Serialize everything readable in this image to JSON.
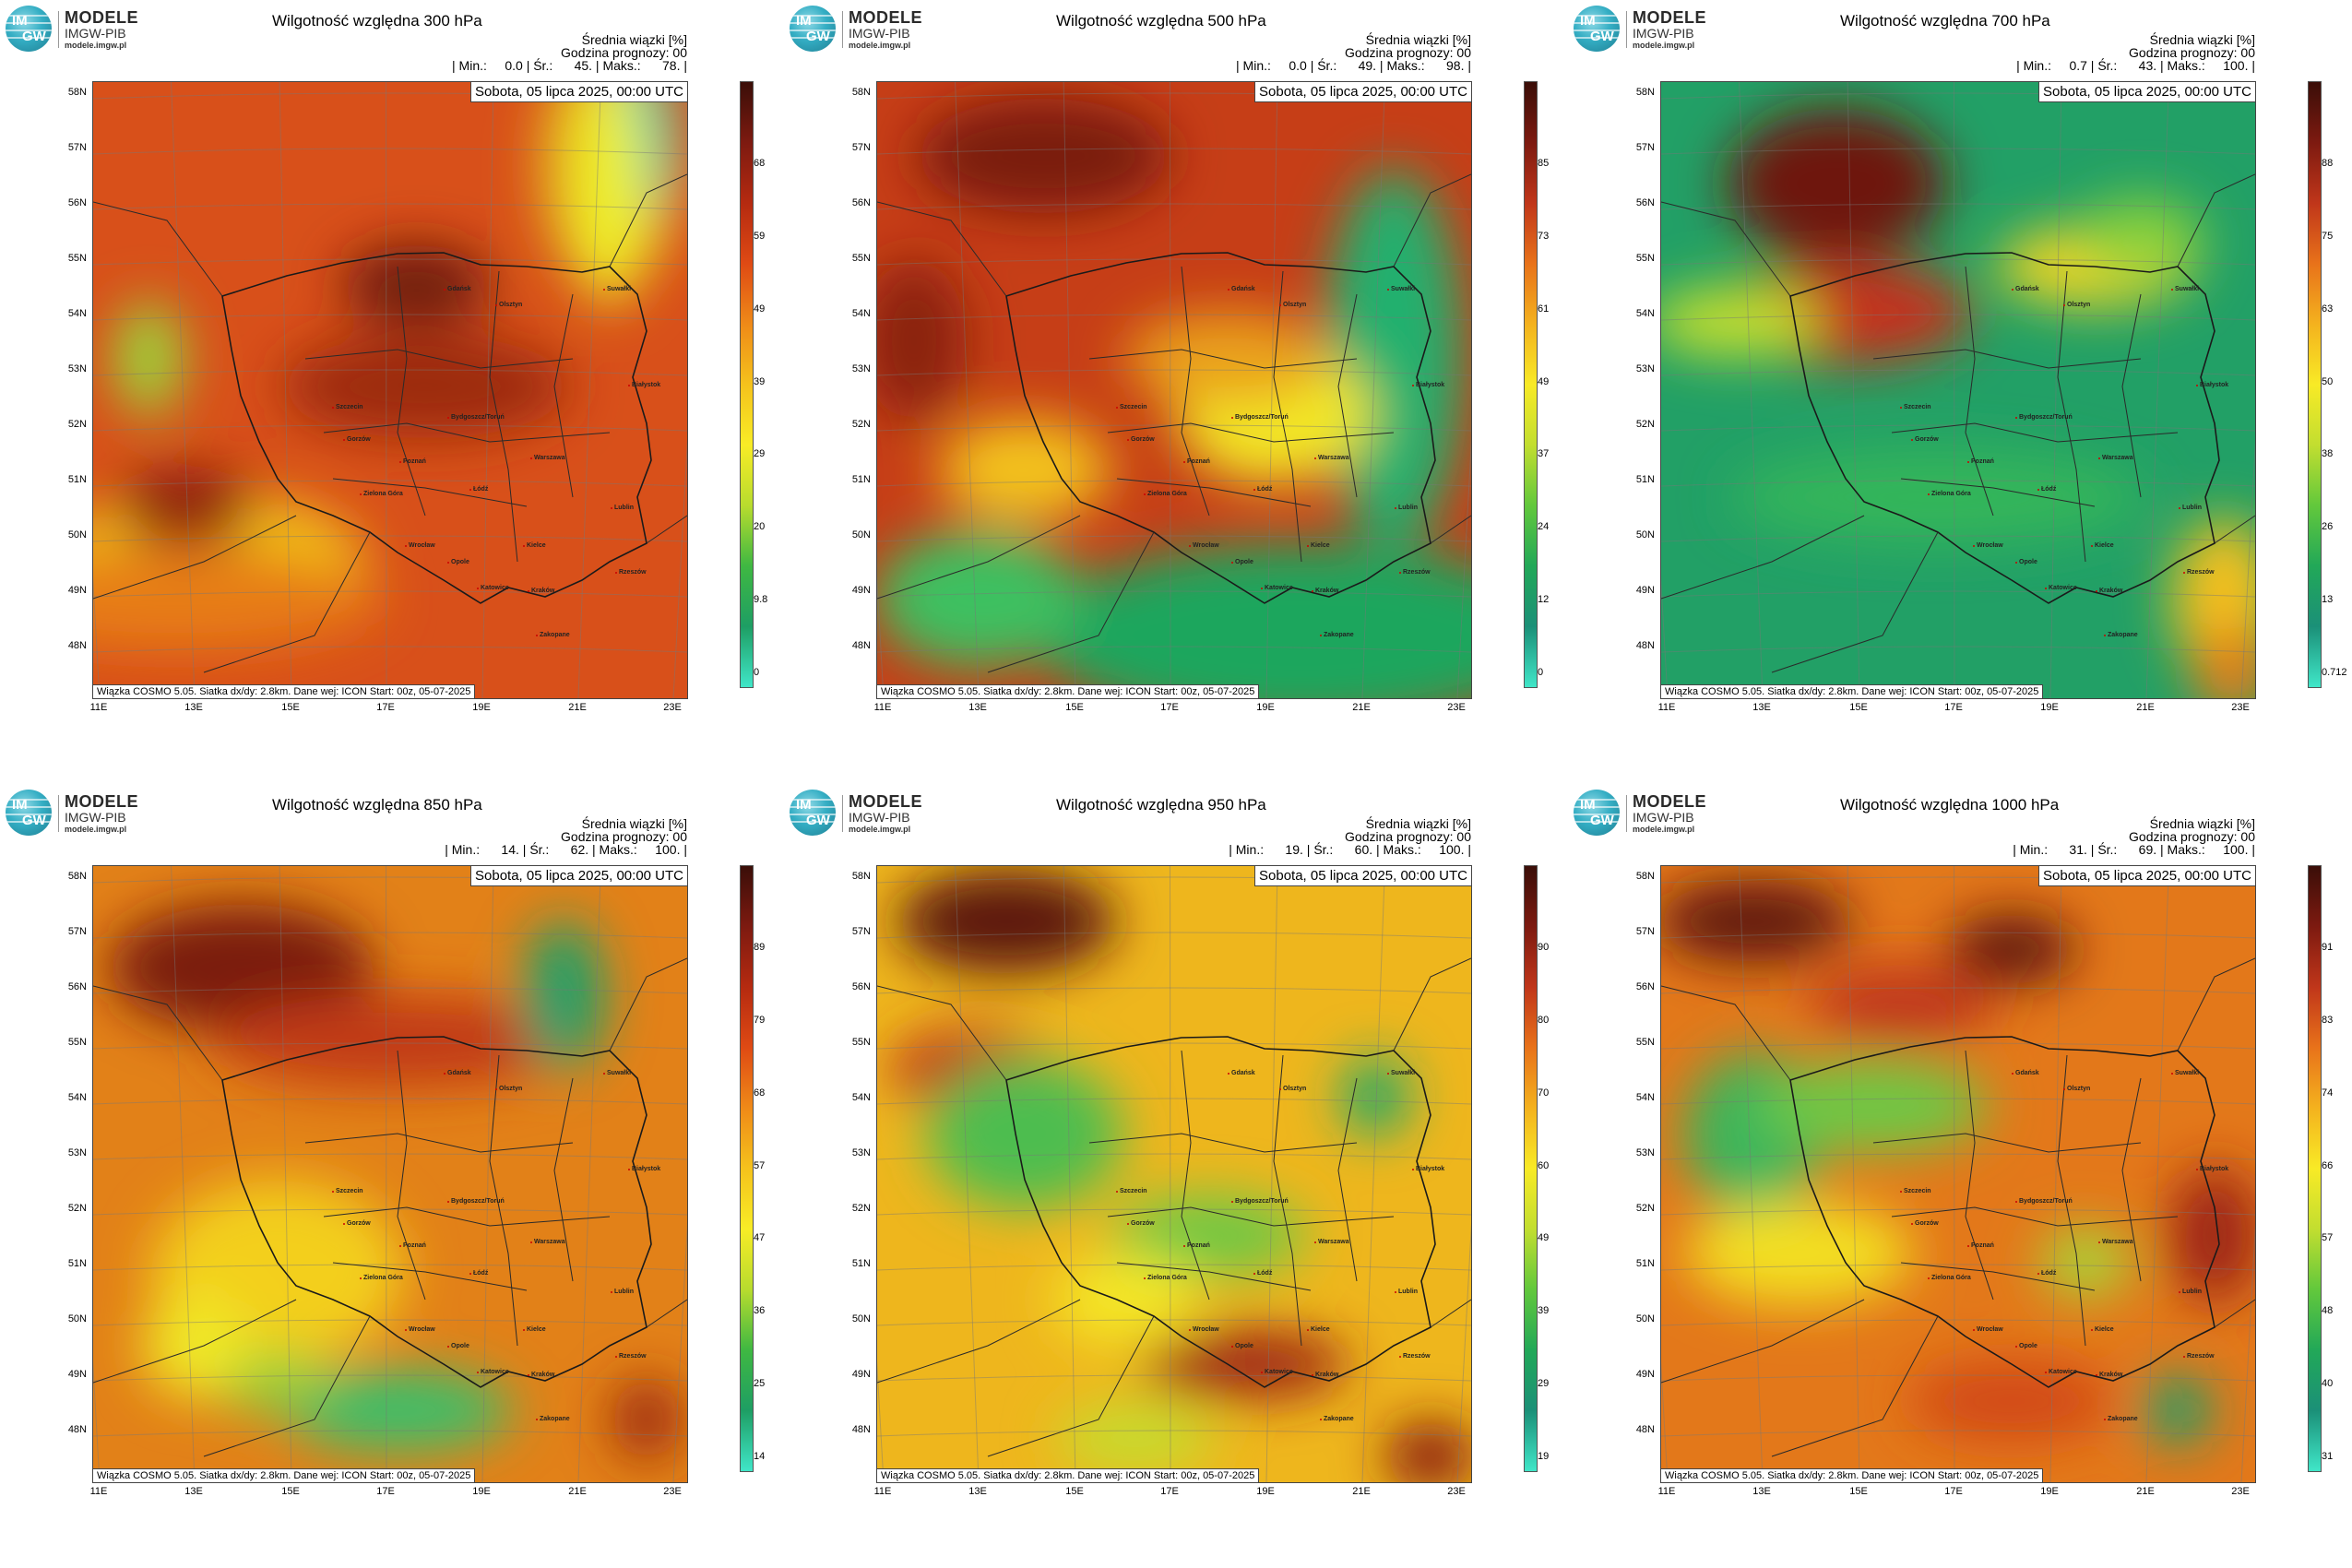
{
  "logo": {
    "line1": "MODELE",
    "line2": "IMGW-PIB",
    "line3": "modele.imgw.pl",
    "im": "IM",
    "gw": "GW"
  },
  "common": {
    "stat_header": "Średnia wiązki [%]",
    "forecast_hour": "Godzina prognozy: 00",
    "date": "Sobota, 05 lipca 2025, 00:00 UTC",
    "footer": "Wiązka COSMO 5.05. Siatka dx/dy: 2.8km. Dane wej: ICON Start: 00z, 05-07-2025",
    "lat_labels": [
      "58N",
      "57N",
      "56N",
      "55N",
      "54N",
      "53N",
      "52N",
      "51N",
      "50N",
      "49N",
      "48N"
    ],
    "lon_labels": [
      "11E",
      "13E",
      "15E",
      "17E",
      "19E",
      "21E",
      "23E"
    ],
    "cities": [
      "Gdańsk",
      "Olsztyn",
      "Szczecin",
      "Bydgoszcz/Toruń",
      "Białystok",
      "Gorzów",
      "Poznań",
      "Warszawa",
      "Zielona Góra",
      "Łódź",
      "Lublin",
      "Wrocław",
      "Kielce",
      "Opole",
      "Katowice",
      "Kraków",
      "Rzeszów",
      "Zakopane",
      "Suwałki"
    ]
  },
  "panels": [
    {
      "title": "Wilgotność względna 300 hPa",
      "stats": "| Min.:     0.0 | Śr.:      45. | Maks.:      78. |",
      "colorbar_ticks": [
        "68",
        "59",
        "49",
        "39",
        "29",
        "20",
        "9.8",
        "0"
      ],
      "palette": "hot"
    },
    {
      "title": "Wilgotność względna 500 hPa",
      "stats": "| Min.:     0.0 | Śr.:      49. | Maks.:      98. |",
      "colorbar_ticks": [
        "85",
        "73",
        "61",
        "49",
        "37",
        "24",
        "12",
        "0"
      ],
      "palette": "mixed"
    },
    {
      "title": "Wilgotność względna 700 hPa",
      "stats": "| Min.:     0.7 | Śr.:      43. | Maks.:     100. |",
      "colorbar_ticks": [
        "88",
        "75",
        "63",
        "50",
        "38",
        "26",
        "13",
        "0.712"
      ],
      "palette": "green"
    },
    {
      "title": "Wilgotność względna 850 hPa",
      "stats": "| Min.:      14. | Śr.:      62. | Maks.:     100. |",
      "colorbar_ticks": [
        "89",
        "79",
        "68",
        "57",
        "47",
        "36",
        "25",
        "14"
      ],
      "palette": "hot"
    },
    {
      "title": "Wilgotność względna 950 hPa",
      "stats": "| Min.:      19. | Śr.:      60. | Maks.:     100. |",
      "colorbar_ticks": [
        "90",
        "80",
        "70",
        "60",
        "49",
        "39",
        "29",
        "19"
      ],
      "palette": "mixed"
    },
    {
      "title": "Wilgotność względna 1000 hPa",
      "stats": "| Min.:      31. | Śr.:      69. | Maks.:     100. |",
      "colorbar_ticks": [
        "91",
        "83",
        "74",
        "66",
        "57",
        "48",
        "40",
        "31"
      ],
      "palette": "mixed"
    }
  ]
}
